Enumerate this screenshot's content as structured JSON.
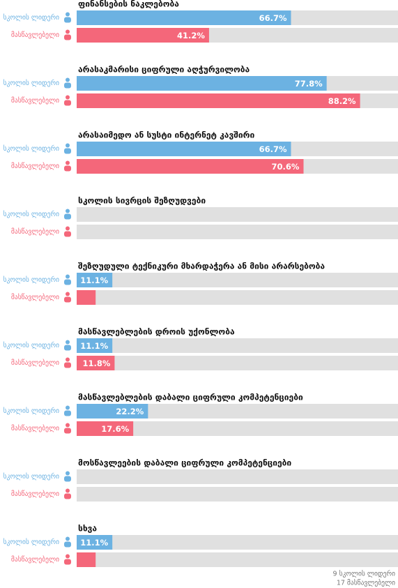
{
  "chart_data": {
    "type": "bar",
    "orientation": "horizontal",
    "categories": [
      "ფინანსების ნაკლებობა",
      "არასაკმარისი ციფრული აღჭურვილობა",
      "არასაიმედო ან სუსტი ინტერნეტ კავშირი",
      "სკოლის სივრცის შეზღუდვები",
      "შეზღუდული ტექნიკური მხარდაჭერა ან მისი არარსებობა",
      "მასწავლებლების დროის უქონლობა",
      "მასწავლებლების დაბალი ციფრული კომპეტენციები",
      "მოსწავლეების დაბალი ციფრული კომპეტენციები",
      "სხვა"
    ],
    "series": [
      {
        "name": "სკოლის ლიდერი",
        "color": "#6cb2e2",
        "values": [
          66.7,
          77.8,
          66.7,
          0,
          11.1,
          11.1,
          22.2,
          0,
          11.1
        ],
        "value_labels": [
          "66.7%",
          "77.8%",
          "66.7%",
          null,
          "11.1%",
          "11.1%",
          "22.2%",
          null,
          "11.1%"
        ]
      },
      {
        "name": "მასწავლებელი",
        "color": "#f4677a",
        "values": [
          41.2,
          88.2,
          70.6,
          0,
          5.9,
          11.8,
          17.6,
          0,
          5.9
        ],
        "value_labels": [
          "41.2%",
          "88.2%",
          "70.6%",
          null,
          null,
          "11.8%",
          "17.6%",
          null,
          null
        ]
      }
    ],
    "xlim": [
      0,
      100
    ],
    "track_color": "#e0e0e0",
    "footer": [
      "9 სკოლის ლიდერი",
      "17 მასწავლებელი"
    ]
  }
}
